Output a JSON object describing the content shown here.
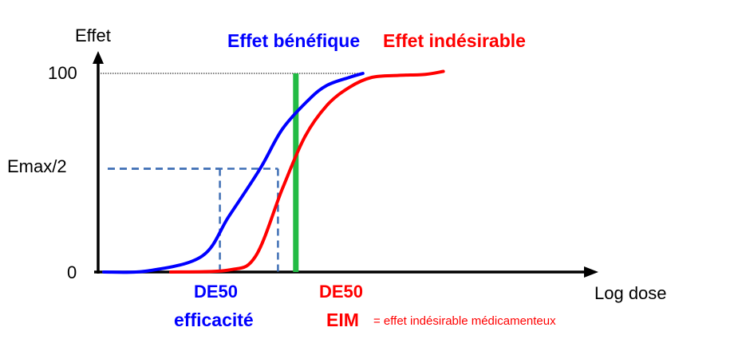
{
  "chart_data": {
    "type": "line",
    "ylabel": "Effet",
    "xlabel": "Log dose",
    "y_ticks": [
      "100",
      "Emax/2",
      "0"
    ],
    "ylim": [
      0,
      100
    ],
    "xlim": [
      0,
      100
    ],
    "legend": [
      {
        "name": "Effet bénéfique",
        "color": "#0000ff"
      },
      {
        "name": "Effet indésirable",
        "color": "#ff0000"
      }
    ],
    "series": [
      {
        "name": "Effet bénéfique",
        "color": "#0000ff",
        "x": [
          0,
          10,
          22,
          28,
          35,
          40,
          46,
          50,
          55,
          58
        ],
        "y": [
          0,
          0.6,
          8,
          28,
          52,
          72,
          87,
          94,
          98,
          100
        ]
      },
      {
        "name": "Effet indésirable",
        "color": "#ff0000",
        "x": [
          15,
          28,
          34,
          40,
          45,
          50,
          55,
          60,
          66,
          72,
          76
        ],
        "y": [
          0,
          1,
          8,
          42,
          68,
          84,
          93,
          98,
          99,
          99.5,
          101
        ]
      }
    ],
    "reference_lines": [
      {
        "type": "horizontal-dotted",
        "y": 100,
        "from_x": 0,
        "to_x": 58
      },
      {
        "type": "dashed",
        "color": "#3f6fb5",
        "y": 52,
        "x_end": 26
      },
      {
        "type": "dashed",
        "color": "#3f6fb5",
        "y": 52,
        "x_end": 39
      },
      {
        "type": "vertical-solid",
        "color": "#22bb44",
        "x": 43,
        "y_top": 100
      }
    ],
    "annotations": [
      {
        "lines": [
          "DE50",
          "efficacité"
        ],
        "color": "#0000ff",
        "x": 26
      },
      {
        "lines": [
          "DE50",
          "EIM"
        ],
        "color": "#ff0000",
        "x": 43
      },
      {
        "text": "= effet indésirable médicamenteux",
        "color": "#ff0000"
      }
    ]
  }
}
